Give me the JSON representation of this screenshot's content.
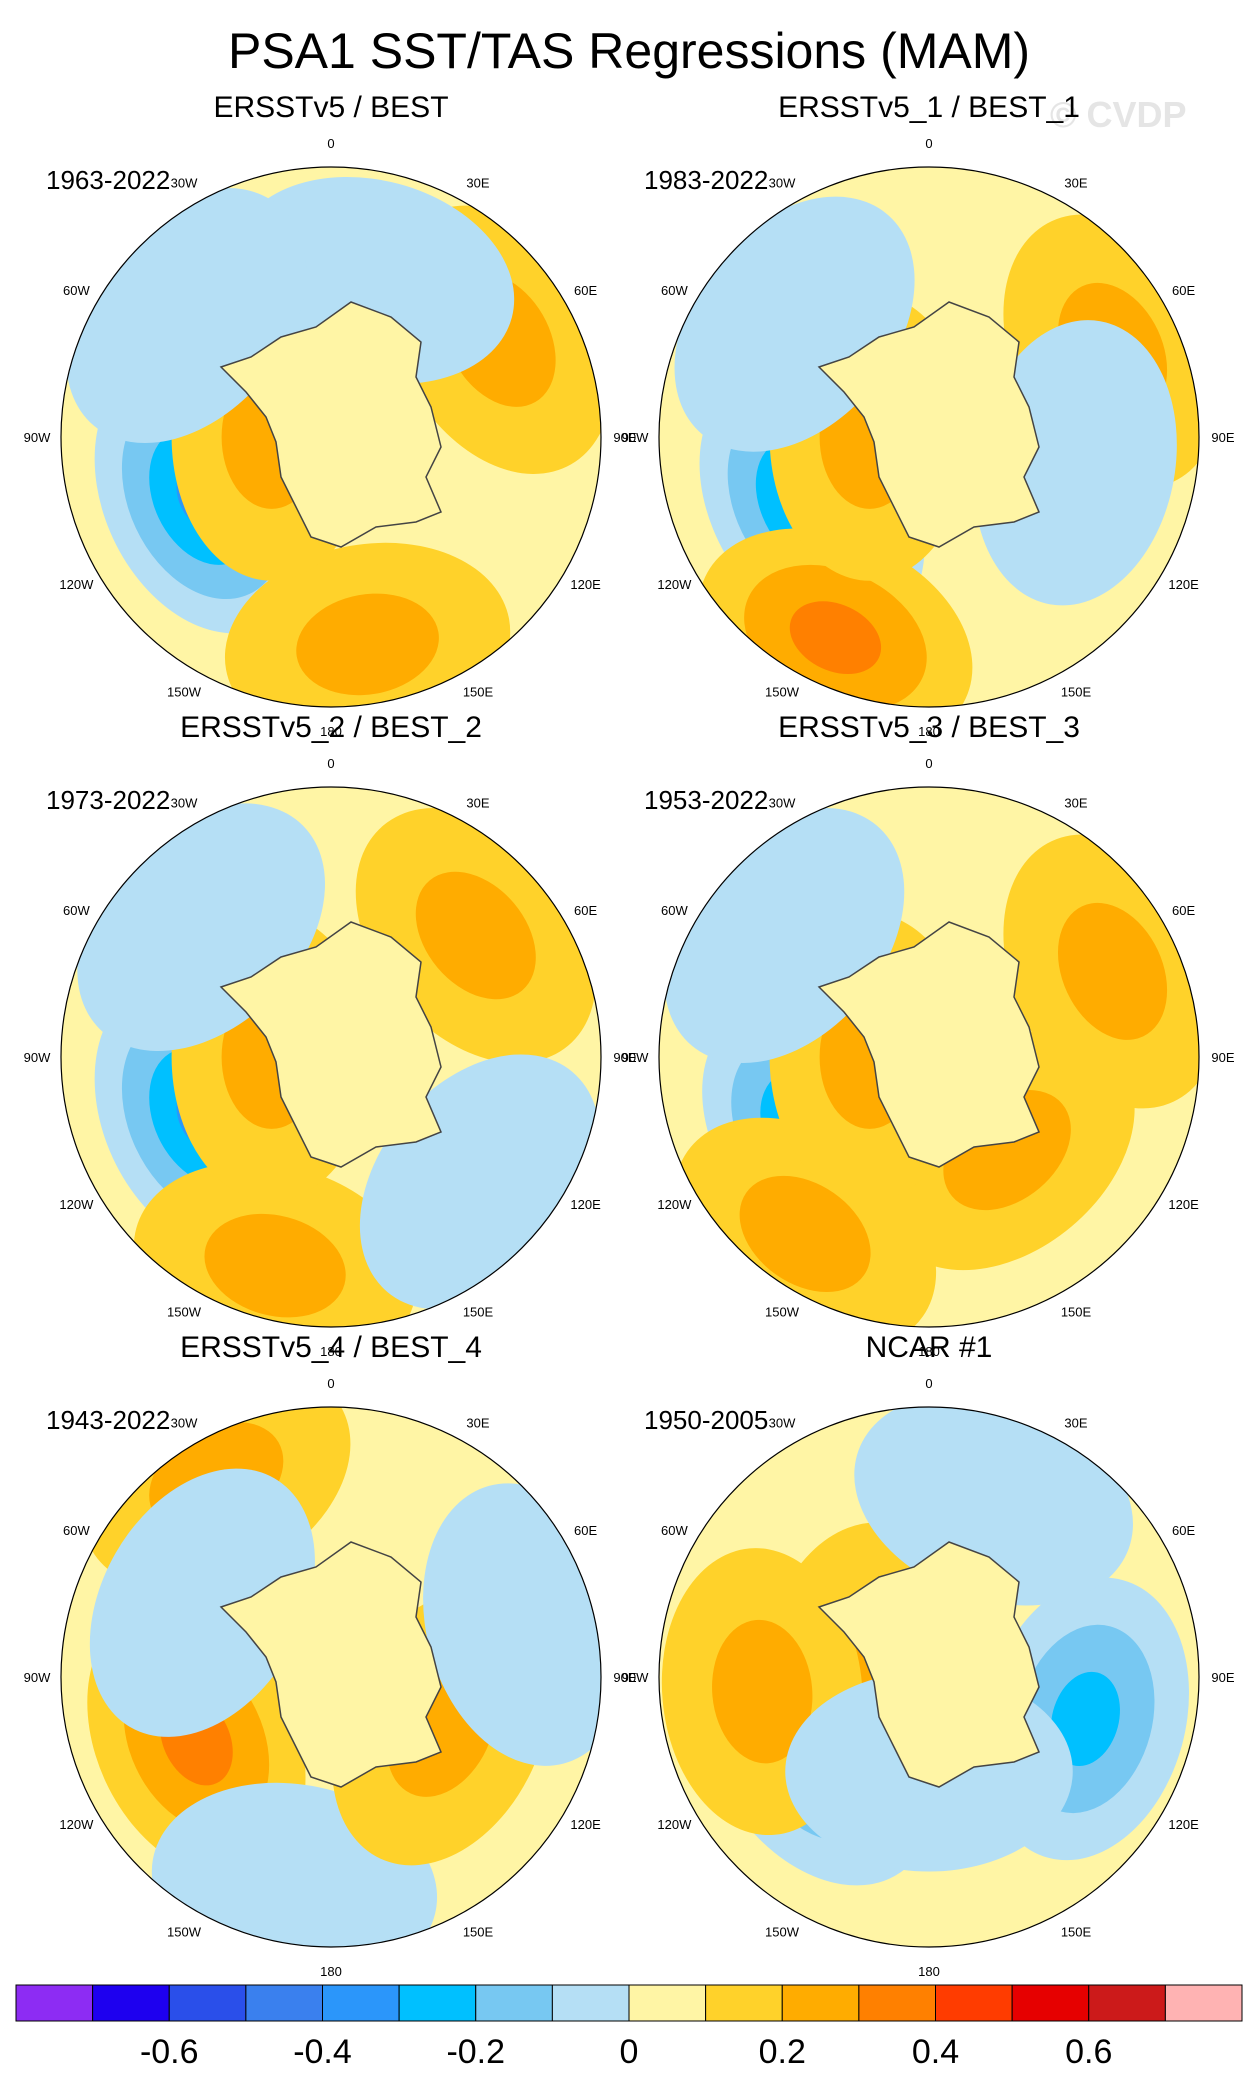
{
  "title": "PSA1 SST/TAS Regressions (MAM)",
  "watermark": "© CVDP",
  "chart_data": {
    "type": "heatmap",
    "projection": "south-polar-stereographic",
    "longitude_labels": [
      "0",
      "30E",
      "60E",
      "90E",
      "120E",
      "150E",
      "180",
      "150W",
      "120W",
      "90W",
      "60W",
      "30W"
    ],
    "colorbar": {
      "levels": [
        -0.7,
        -0.6,
        -0.5,
        -0.4,
        -0.3,
        -0.2,
        -0.1,
        0,
        0.1,
        0.2,
        0.3,
        0.4,
        0.5,
        0.6,
        0.7
      ],
      "tick_labels": [
        "-0.6",
        "-0.4",
        "-0.2",
        "0",
        "0.2",
        "0.4",
        "0.6"
      ],
      "colors": [
        "#8d2cf3",
        "#1e00ef",
        "#2a4fea",
        "#3a80ee",
        "#2b96fa",
        "#00c0ff",
        "#77c8f2",
        "#b5dff5",
        "#fff5a5",
        "#ffd22a",
        "#ffac00",
        "#ff8000",
        "#ff3c00",
        "#e60000",
        "#cc1a1a",
        "#ffb3b3"
      ]
    },
    "panels": [
      {
        "title": "ERSSTv5 / BEST",
        "years": "1963-2022",
        "features": [
          {
            "type": "neg",
            "lon": 245,
            "r": 0.52,
            "level": 4
          },
          {
            "type": "pos",
            "lon": 170,
            "r": 0.78,
            "level": 2
          },
          {
            "type": "pos",
            "lon": 270,
            "r": 0.22,
            "level": 2
          },
          {
            "type": "pos",
            "lon": 60,
            "r": 0.72,
            "level": 2
          },
          {
            "type": "neg",
            "lon": 15,
            "r": 0.6,
            "level": 1
          },
          {
            "type": "neg",
            "lon": 310,
            "r": 0.7,
            "level": 1
          }
        ]
      },
      {
        "title": "ERSSTv5_1 / BEST_1",
        "years": "1983-2022",
        "features": [
          {
            "type": "neg",
            "lon": 240,
            "r": 0.5,
            "level": 4
          },
          {
            "type": "pos",
            "lon": 205,
            "r": 0.82,
            "level": 3
          },
          {
            "type": "pos",
            "lon": 270,
            "r": 0.22,
            "level": 2
          },
          {
            "type": "pos",
            "lon": 65,
            "r": 0.75,
            "level": 2
          },
          {
            "type": "neg",
            "lon": 100,
            "r": 0.55,
            "level": 1
          },
          {
            "type": "neg",
            "lon": 310,
            "r": 0.65,
            "level": 1
          }
        ]
      },
      {
        "title": "ERSSTv5_2 / BEST_2",
        "years": "1973-2022",
        "features": [
          {
            "type": "neg",
            "lon": 245,
            "r": 0.52,
            "level": 4
          },
          {
            "type": "pos",
            "lon": 195,
            "r": 0.8,
            "level": 2
          },
          {
            "type": "pos",
            "lon": 270,
            "r": 0.22,
            "level": 2
          },
          {
            "type": "pos",
            "lon": 50,
            "r": 0.7,
            "level": 2
          },
          {
            "type": "neg",
            "lon": 130,
            "r": 0.72,
            "level": 1
          },
          {
            "type": "neg",
            "lon": 315,
            "r": 0.68,
            "level": 1
          }
        ]
      },
      {
        "title": "ERSSTv5_3 / BEST_3",
        "years": "1953-2022",
        "features": [
          {
            "type": "neg",
            "lon": 235,
            "r": 0.5,
            "level": 4
          },
          {
            "type": "pos",
            "lon": 215,
            "r": 0.8,
            "level": 2
          },
          {
            "type": "pos",
            "lon": 140,
            "r": 0.45,
            "level": 2
          },
          {
            "type": "pos",
            "lon": 270,
            "r": 0.22,
            "level": 2
          },
          {
            "type": "pos",
            "lon": 65,
            "r": 0.75,
            "level": 2
          },
          {
            "type": "neg",
            "lon": 310,
            "r": 0.7,
            "level": 1
          }
        ]
      },
      {
        "title": "ERSSTv5_4 / BEST_4",
        "years": "1943-2022",
        "features": [
          {
            "type": "pos",
            "lon": 245,
            "r": 0.55,
            "level": 3
          },
          {
            "type": "neg",
            "lon": 190,
            "r": 0.78,
            "level": 1
          },
          {
            "type": "pos",
            "lon": 115,
            "r": 0.45,
            "level": 2
          },
          {
            "type": "pos",
            "lon": 330,
            "r": 0.85,
            "level": 2
          },
          {
            "type": "neg",
            "lon": 75,
            "r": 0.75,
            "level": 1
          },
          {
            "type": "neg",
            "lon": 300,
            "r": 0.55,
            "level": 1
          }
        ]
      },
      {
        "title": "NCAR #1",
        "years": "1950-2005",
        "features": [
          {
            "type": "neg",
            "lon": 235,
            "r": 0.5,
            "level": 3
          },
          {
            "type": "neg",
            "lon": 105,
            "r": 0.6,
            "level": 3
          },
          {
            "type": "pos",
            "lon": 280,
            "r": 0.25,
            "level": 2
          },
          {
            "type": "pos",
            "lon": 265,
            "r": 0.62,
            "level": 2
          },
          {
            "type": "neg",
            "lon": 20,
            "r": 0.7,
            "level": 1
          },
          {
            "type": "neg",
            "lon": 180,
            "r": 0.35,
            "level": 1
          }
        ]
      }
    ]
  }
}
